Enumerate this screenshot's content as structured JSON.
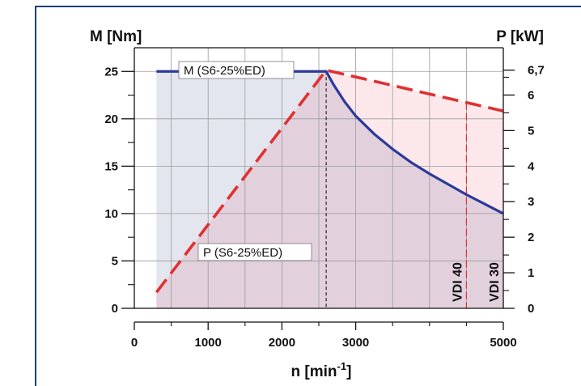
{
  "chart_data": {
    "type": "line",
    "title": "",
    "xlabel": "n [min",
    "xlabel_sup": "-1",
    "xlabel_suffix": "]",
    "ylabel_left": "M [Nm]",
    "ylabel_right": "P [kW]",
    "xlim": [
      0,
      5000
    ],
    "ylim_left": [
      0,
      27.5
    ],
    "ylim_right": [
      0,
      7.33
    ],
    "x_ticks": [
      0,
      1000,
      2000,
      3000,
      5000
    ],
    "x_minor_ticks": [
      500,
      1500,
      2500,
      3500,
      4000,
      4500
    ],
    "y_left_ticks": [
      0,
      5,
      10,
      15,
      20,
      25
    ],
    "y_right_ticks": [
      {
        "value": 0,
        "label": "0"
      },
      {
        "value": 1,
        "label": "1"
      },
      {
        "value": 2,
        "label": "2"
      },
      {
        "value": 3,
        "label": "3"
      },
      {
        "value": 4,
        "label": "4"
      },
      {
        "value": 5,
        "label": "5"
      },
      {
        "value": 6,
        "label": "6"
      },
      {
        "value": 6.7,
        "label": "6,7"
      }
    ],
    "grid": true,
    "rated_speed": 2600,
    "series": [
      {
        "name": "M (S6-25%ED)",
        "axis": "left",
        "style": "solid",
        "color": "#2b3a9a",
        "x": [
          300,
          2600,
          2700,
          2850,
          3000,
          3250,
          3500,
          3750,
          4000,
          4250,
          4500,
          4750,
          5000
        ],
        "y": [
          25,
          25,
          23.6,
          21.8,
          20.3,
          18.4,
          16.8,
          15.4,
          14.2,
          13.1,
          12.0,
          11.0,
          10.0
        ]
      },
      {
        "name": "P (S6-25%ED)",
        "axis": "right",
        "style": "dashed",
        "color": "#e03030",
        "x": [
          300,
          2600,
          5000
        ],
        "y": [
          0.45,
          6.7,
          5.55
        ]
      }
    ],
    "annotations": [
      {
        "text": "VDI 40",
        "x": 4500
      },
      {
        "text": "VDI 30",
        "x": 5000
      }
    ],
    "colors": {
      "frame": "#1c3f78",
      "torque_fill": "#e4e6ef",
      "overlap_fill": "#e2d1dc",
      "power_fill": "#fbe4e6",
      "grid": "#9a9a9a"
    }
  }
}
